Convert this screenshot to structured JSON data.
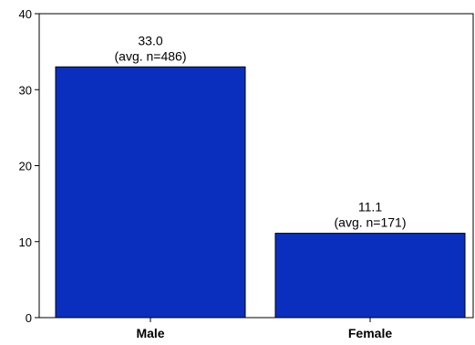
{
  "chart_data": {
    "type": "bar",
    "categories": [
      "Male",
      "Female"
    ],
    "values": [
      33.0,
      11.1
    ],
    "value_labels": [
      "33.0",
      "11.1"
    ],
    "annotations": [
      "(avg. n=486)",
      "(avg. n=171)"
    ],
    "title": "",
    "xlabel": "",
    "ylabel": "",
    "ylim": [
      0,
      40
    ],
    "yticks": [
      0,
      10,
      20,
      30,
      40
    ],
    "grid": false,
    "legend": "none",
    "bar_color": "#0A2FBF",
    "bar_edge_color": "#000000"
  }
}
